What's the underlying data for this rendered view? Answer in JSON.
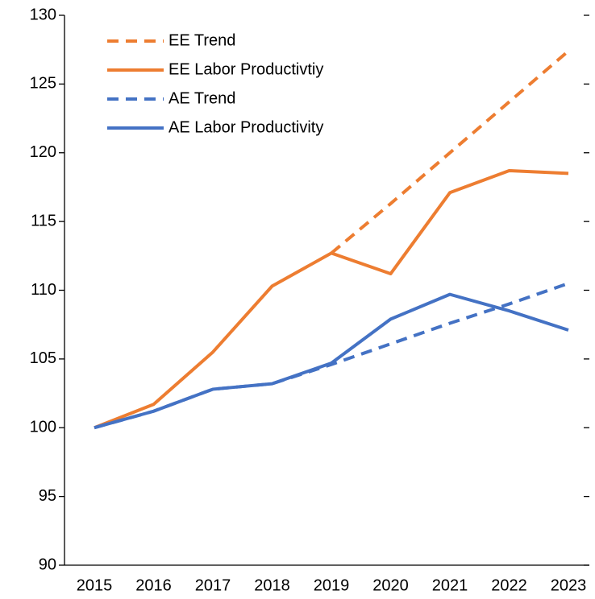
{
  "chart_data": {
    "type": "line",
    "categories": [
      "2015",
      "2016",
      "2017",
      "2018",
      "2019",
      "2020",
      "2021",
      "2022",
      "2023"
    ],
    "series": [
      {
        "name": "EE Trend",
        "color": "#ed7d31",
        "dash": true,
        "values": [
          null,
          null,
          null,
          null,
          112.7,
          116.3,
          120.0,
          123.7,
          127.4
        ]
      },
      {
        "name": "EE Labor Productivtiy",
        "color": "#ed7d31",
        "dash": false,
        "values": [
          100,
          101.7,
          105.5,
          110.3,
          112.7,
          111.2,
          117.1,
          118.7,
          118.5
        ]
      },
      {
        "name": "AE Trend",
        "color": "#4472c4",
        "dash": true,
        "values": [
          100,
          101.2,
          102.8,
          103.2,
          104.6,
          106.1,
          107.6,
          109.0,
          110.5
        ]
      },
      {
        "name": "AE Labor Productivity",
        "color": "#4472c4",
        "dash": false,
        "values": [
          100,
          101.2,
          102.8,
          103.2,
          104.7,
          107.9,
          109.7,
          108.5,
          107.1
        ]
      }
    ],
    "ylim": [
      90,
      130
    ],
    "yticks": [
      90,
      95,
      100,
      105,
      110,
      115,
      120,
      125,
      130
    ],
    "grid": false,
    "legend": "top-left"
  }
}
